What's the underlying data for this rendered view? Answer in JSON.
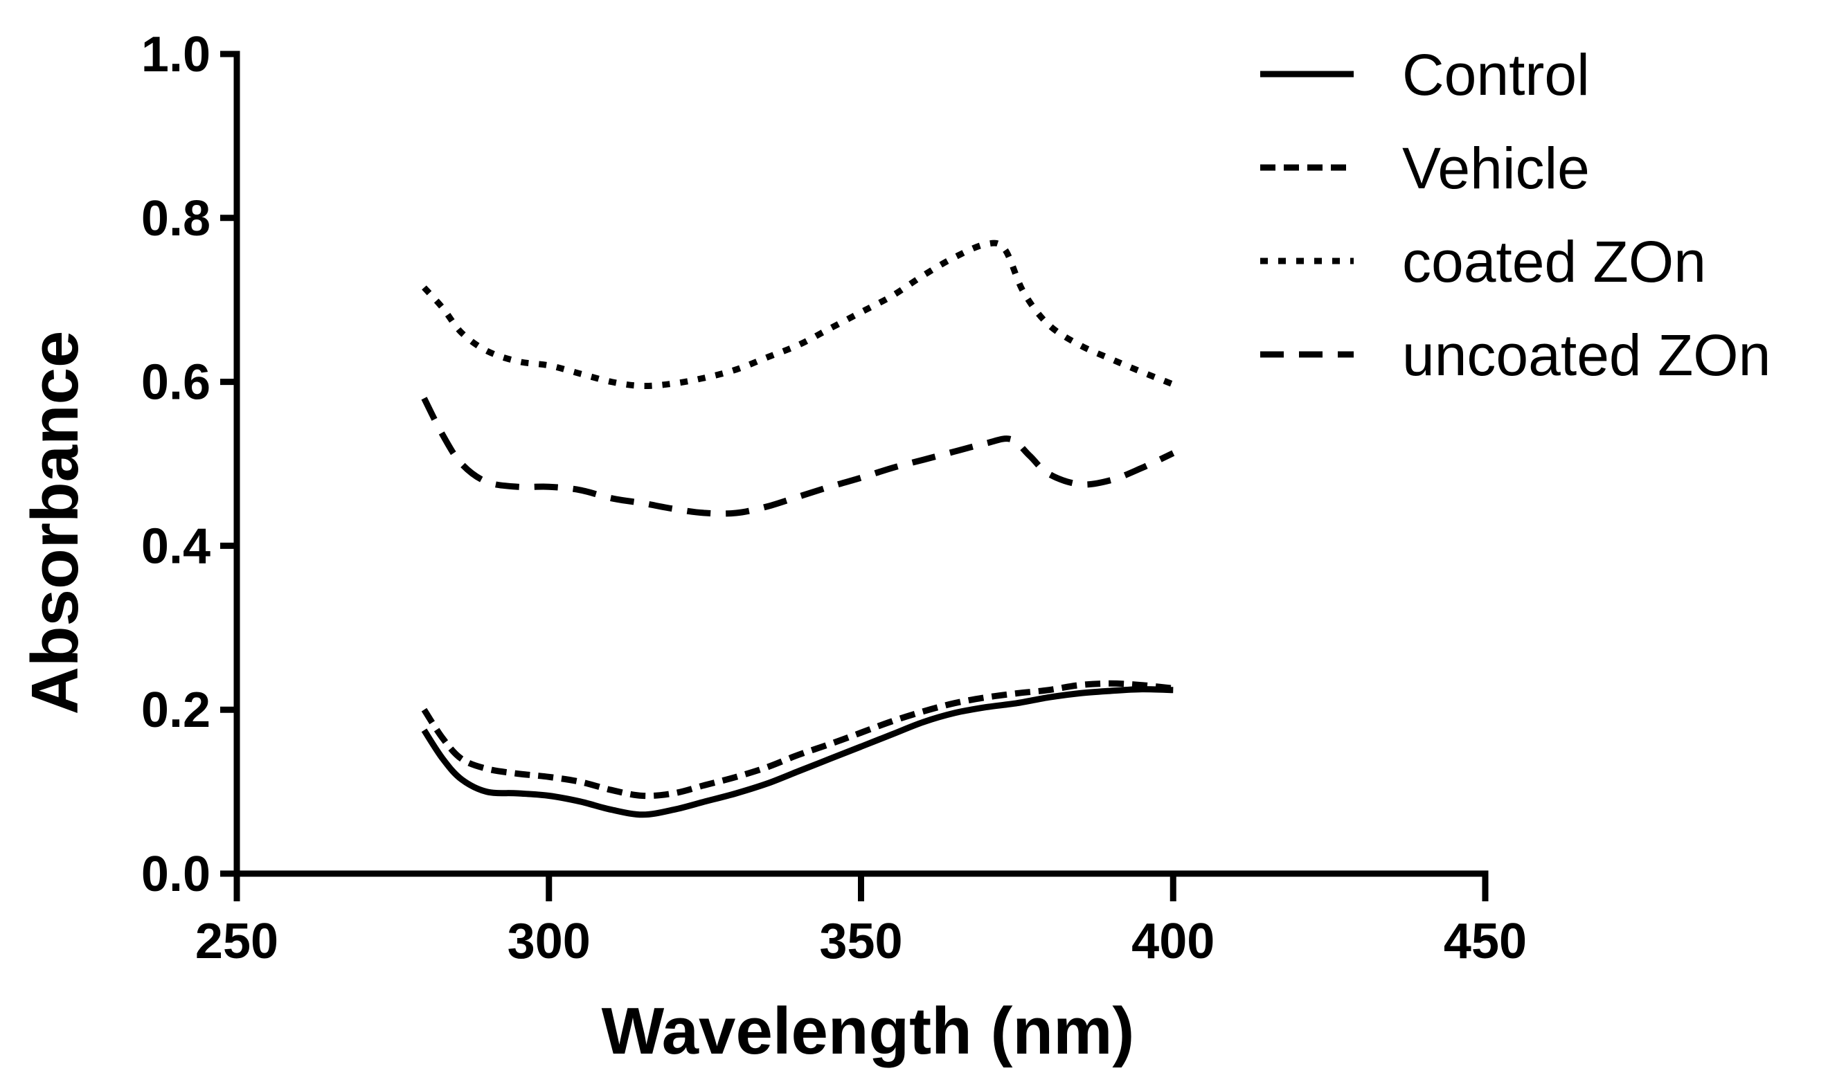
{
  "chart_data": {
    "type": "line",
    "title": "",
    "xlabel": "Wavelength (nm)",
    "ylabel": "Absorbance",
    "xlim": [
      250,
      450
    ],
    "ylim": [
      0.0,
      1.0
    ],
    "xticks": [
      250,
      300,
      350,
      400,
      450
    ],
    "xtick_labels": [
      "250",
      "300",
      "350",
      "400",
      "450"
    ],
    "yticks": [
      0.0,
      0.2,
      0.4,
      0.6,
      0.8,
      1.0
    ],
    "ytick_labels": [
      "0.0",
      "0.2",
      "0.4",
      "0.6",
      "0.8",
      "1.0"
    ],
    "grid": false,
    "legend_position": "top-right",
    "series": [
      {
        "name": "Control",
        "style": "solid",
        "color": "#000000",
        "x": [
          280,
          283,
          286,
          290,
          295,
          300,
          305,
          310,
          315,
          320,
          325,
          330,
          335,
          340,
          345,
          350,
          355,
          360,
          365,
          370,
          375,
          380,
          385,
          390,
          395,
          400
        ],
        "y": [
          0.175,
          0.14,
          0.115,
          0.1,
          0.098,
          0.095,
          0.088,
          0.078,
          0.072,
          0.078,
          0.088,
          0.098,
          0.11,
          0.125,
          0.14,
          0.155,
          0.17,
          0.185,
          0.196,
          0.203,
          0.208,
          0.215,
          0.22,
          0.223,
          0.225,
          0.224
        ]
      },
      {
        "name": "Vehicle",
        "style": "dash",
        "color": "#000000",
        "x": [
          280,
          283,
          286,
          290,
          295,
          300,
          305,
          310,
          315,
          320,
          325,
          330,
          335,
          340,
          345,
          350,
          355,
          360,
          365,
          370,
          375,
          380,
          385,
          390,
          395,
          400
        ],
        "y": [
          0.2,
          0.165,
          0.14,
          0.128,
          0.122,
          0.118,
          0.112,
          0.102,
          0.095,
          0.098,
          0.108,
          0.118,
          0.13,
          0.145,
          0.158,
          0.172,
          0.186,
          0.198,
          0.208,
          0.215,
          0.22,
          0.224,
          0.23,
          0.232,
          0.23,
          0.226
        ]
      },
      {
        "name": "coated ZOn",
        "style": "dot",
        "color": "#000000",
        "x": [
          280,
          283,
          286,
          290,
          295,
          300,
          305,
          310,
          315,
          320,
          325,
          330,
          335,
          340,
          345,
          350,
          355,
          360,
          365,
          370,
          373,
          376,
          380,
          385,
          390,
          395,
          400
        ],
        "y": [
          0.715,
          0.69,
          0.66,
          0.638,
          0.625,
          0.62,
          0.61,
          0.6,
          0.595,
          0.598,
          0.605,
          0.615,
          0.63,
          0.645,
          0.665,
          0.685,
          0.705,
          0.73,
          0.752,
          0.768,
          0.762,
          0.71,
          0.67,
          0.645,
          0.628,
          0.612,
          0.597
        ]
      },
      {
        "name": "uncoated ZOn",
        "style": "longdash",
        "color": "#000000",
        "x": [
          280,
          283,
          286,
          290,
          295,
          300,
          305,
          310,
          315,
          320,
          325,
          330,
          335,
          340,
          345,
          350,
          355,
          360,
          365,
          370,
          374,
          377,
          380,
          385,
          390,
          395,
          400
        ],
        "y": [
          0.58,
          0.535,
          0.5,
          0.478,
          0.472,
          0.472,
          0.468,
          0.458,
          0.452,
          0.445,
          0.44,
          0.44,
          0.448,
          0.46,
          0.472,
          0.483,
          0.495,
          0.505,
          0.515,
          0.525,
          0.53,
          0.51,
          0.488,
          0.475,
          0.48,
          0.495,
          0.513
        ]
      }
    ]
  }
}
